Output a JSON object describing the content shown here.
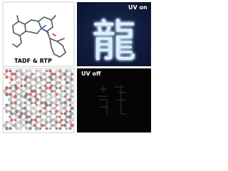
{
  "panels": [
    {
      "label": "TADF & RTP"
    },
    {
      "label": "UV on",
      "glyph": "龍"
    },
    {
      "label": "UV off"
    }
  ]
}
